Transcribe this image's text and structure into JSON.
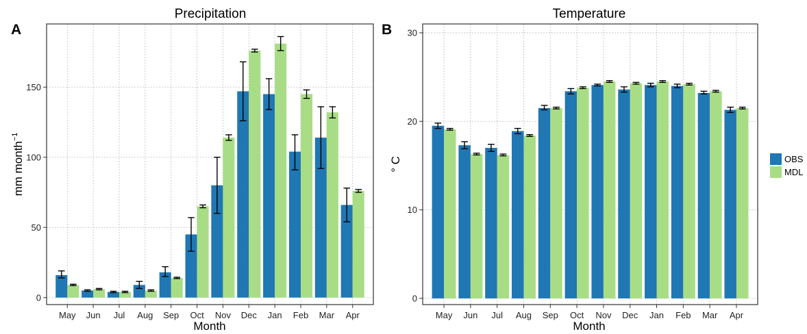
{
  "chart_data": [
    {
      "type": "bar",
      "panel_label": "A",
      "title": "Precipitation",
      "xlabel": "Month",
      "ylabel": "mm month",
      "ylabel_sup": "−1",
      "categories": [
        "May",
        "Jun",
        "Jul",
        "Aug",
        "Sep",
        "Oct",
        "Nov",
        "Dec",
        "Jan",
        "Feb",
        "Mar",
        "Apr"
      ],
      "ylim": [
        -5,
        195
      ],
      "yticks": [
        0,
        50,
        100,
        150
      ],
      "grid": true,
      "series": [
        {
          "name": "OBS",
          "color": "#1f77b4",
          "values": [
            16,
            5,
            4,
            9,
            18,
            45,
            80,
            147,
            145,
            104,
            114,
            66
          ],
          "err_low": [
            14,
            4.5,
            3.5,
            6.5,
            15,
            33,
            60,
            126,
            134,
            91,
            92,
            54
          ],
          "err_high": [
            19,
            5.5,
            4.5,
            11.5,
            22,
            57,
            100,
            168,
            156,
            116,
            136,
            78
          ]
        },
        {
          "name": "MDL",
          "color": "#a8dd86",
          "values": [
            9,
            6,
            4,
            5,
            14,
            65,
            114,
            176,
            181,
            145,
            132,
            76
          ],
          "err_low": [
            8.5,
            5.5,
            3.5,
            4.5,
            13.5,
            64,
            112,
            175,
            176,
            142,
            128,
            75
          ],
          "err_high": [
            9.5,
            6.5,
            4.5,
            5.5,
            14.5,
            66,
            116,
            177,
            186,
            148,
            136,
            77
          ]
        }
      ]
    },
    {
      "type": "bar",
      "panel_label": "B",
      "title": "Temperature",
      "xlabel": "Month",
      "ylabel": "° C",
      "categories": [
        "May",
        "Jun",
        "Jul",
        "Aug",
        "Sep",
        "Oct",
        "Nov",
        "Dec",
        "Jan",
        "Feb",
        "Mar",
        "Apr"
      ],
      "ylim": [
        -0.7,
        31
      ],
      "yticks": [
        0,
        10,
        20,
        30
      ],
      "grid": true,
      "series": [
        {
          "name": "OBS",
          "color": "#1f77b4",
          "values": [
            19.5,
            17.3,
            17.0,
            18.9,
            21.5,
            23.4,
            24.1,
            23.6,
            24.1,
            24.0,
            23.2,
            21.3
          ],
          "err_low": [
            19.2,
            16.9,
            16.6,
            18.6,
            21.3,
            23.1,
            24.0,
            23.3,
            23.9,
            23.8,
            23.1,
            21.0
          ],
          "err_high": [
            19.8,
            17.7,
            17.4,
            19.2,
            21.8,
            23.7,
            24.2,
            23.9,
            24.3,
            24.2,
            23.4,
            21.6
          ]
        },
        {
          "name": "MDL",
          "color": "#a8dd86",
          "values": [
            19.1,
            16.3,
            16.2,
            18.4,
            21.5,
            23.8,
            24.5,
            24.3,
            24.5,
            24.2,
            23.4,
            21.5
          ],
          "err_low": [
            19.0,
            16.2,
            16.1,
            18.3,
            21.4,
            23.7,
            24.4,
            24.2,
            24.4,
            24.1,
            23.3,
            21.4
          ],
          "err_high": [
            19.2,
            16.4,
            16.3,
            18.5,
            21.6,
            23.9,
            24.6,
            24.4,
            24.6,
            24.3,
            23.5,
            21.6
          ]
        }
      ]
    }
  ],
  "legend": {
    "placement": "right",
    "items": [
      {
        "label": "OBS",
        "color": "#1f77b4"
      },
      {
        "label": "MDL",
        "color": "#a8dd86"
      }
    ]
  }
}
